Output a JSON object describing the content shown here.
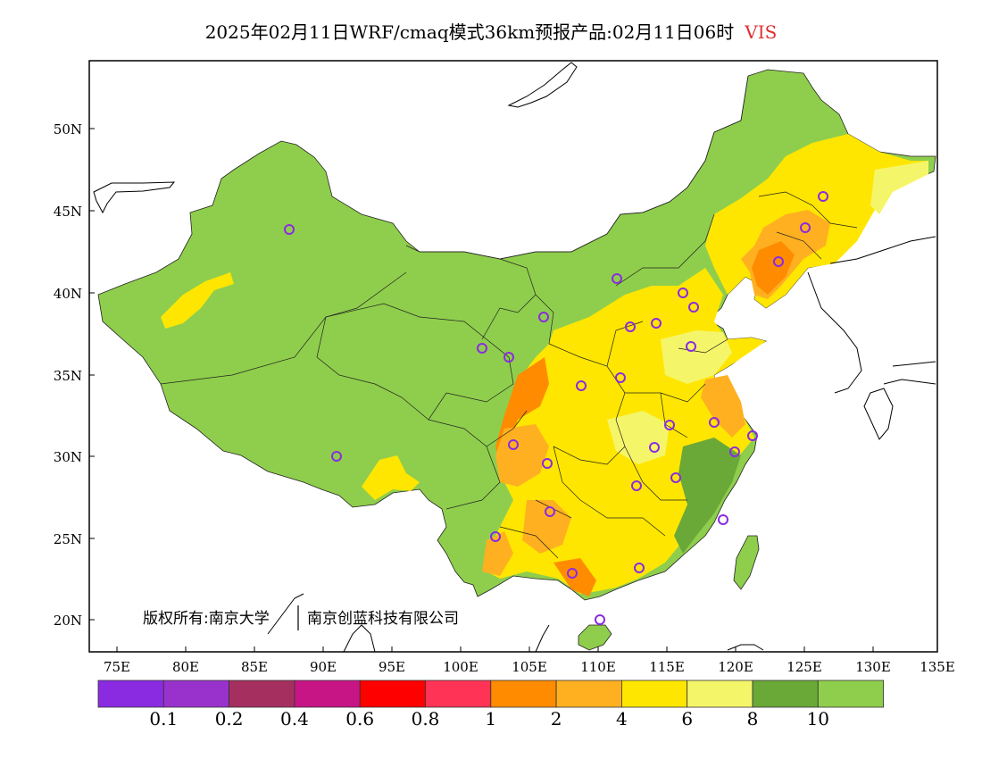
{
  "title": {
    "main": "2025年02月11日WRF/cmaq模式36km预报产品:02月11日06时",
    "variable": "VIS",
    "variable_color": "#e03030"
  },
  "axes": {
    "lat_labels": [
      "50N",
      "45N",
      "40N",
      "35N",
      "30N",
      "25N",
      "20N"
    ],
    "lon_labels": [
      "75E",
      "80E",
      "85E",
      "90E",
      "95E",
      "100E",
      "105E",
      "110E",
      "115E",
      "120E",
      "125E",
      "130E",
      "135E"
    ]
  },
  "copyright": {
    "left": "版权所有:南京大学",
    "right": "南京创蓝科技有限公司"
  },
  "colorbar": {
    "colors": [
      "#8a2be2",
      "#9932cc",
      "#a5305f",
      "#c71585",
      "#ff0000",
      "#ff3355",
      "#ff8c00",
      "#ffb020",
      "#ffe600",
      "#f5f56a",
      "#6aa838",
      "#8fce4c"
    ],
    "labels": [
      "0.1",
      "0.2",
      "0.4",
      "0.6",
      "0.8",
      "1",
      "2",
      "4",
      "6",
      "8",
      "10"
    ]
  },
  "palette": {
    "land_green": "#8fce4c",
    "dark_green": "#6aa838",
    "yellow": "#ffe600",
    "light_yellow": "#f5f56a",
    "orange": "#ffb020",
    "dark_orange": "#ff8c00",
    "station_marker": "#8a2be2"
  }
}
